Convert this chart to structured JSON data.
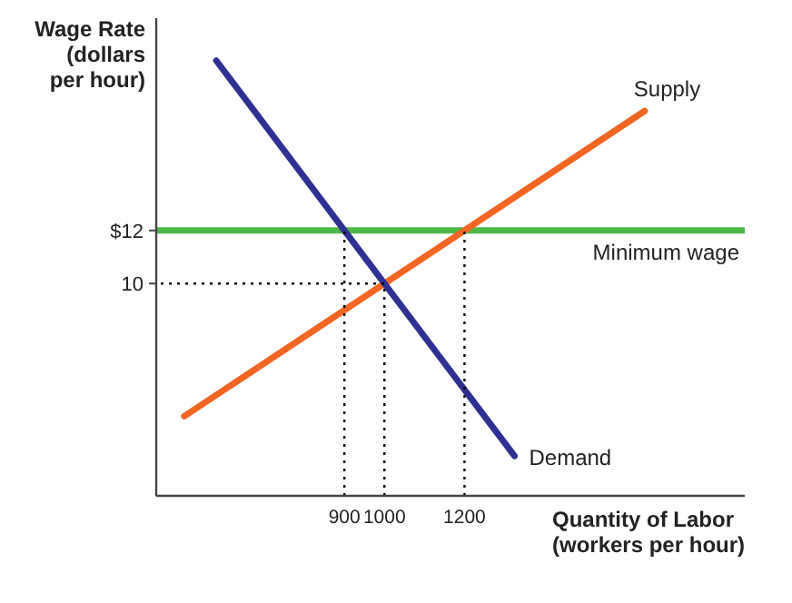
{
  "chart_data": {
    "type": "line",
    "xlabel": "Quantity of Labor\n(workers per hour)",
    "ylabel": "Wage Rate\n(dollars\nper hour)",
    "xlim": [
      430,
      1900
    ],
    "ylim": [
      2,
      20
    ],
    "xticks": [
      900,
      1000,
      1200
    ],
    "yticks": [
      10,
      {
        "value": 12,
        "label": "$12"
      }
    ],
    "grid": false,
    "marker": "none",
    "series": [
      {
        "name": "Supply",
        "color": "#f26522",
        "x": [
          500,
          1650
        ],
        "values": [
          5,
          16.5
        ]
      },
      {
        "name": "Demand",
        "color": "#2e3192",
        "x": [
          580,
          1325
        ],
        "values": [
          18.4,
          3.5
        ]
      },
      {
        "color": "#000000",
        "x": [
          900,
          900
        ],
        "values": [
          2,
          12
        ],
        "line_style": "dotted"
      },
      {
        "color": "#000000",
        "x": [
          1000,
          1000,
          430
        ],
        "values": [
          2,
          10,
          10
        ],
        "line_style": "dotted"
      },
      {
        "color": "#000000",
        "x": [
          1200,
          1200
        ],
        "values": [
          2,
          12
        ],
        "line_style": "dotted"
      }
    ],
    "ref_lines": [
      {
        "axis": "y",
        "value": 12,
        "label": "Minimum wage",
        "color": "#4db848"
      }
    ]
  }
}
